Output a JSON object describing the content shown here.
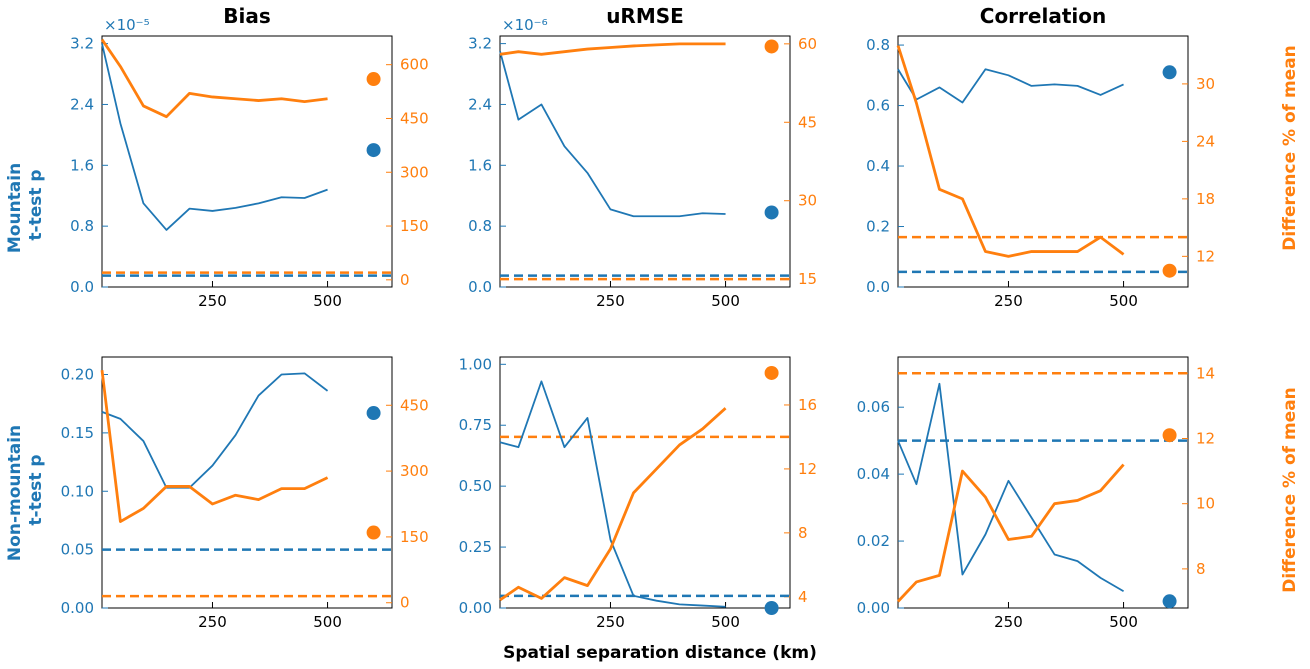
{
  "figure": {
    "xlabel": "Spatial separation distance (km)",
    "row_labels": [
      [
        "Mountain",
        "t-test p"
      ],
      [
        "Non-mountain",
        "t-test p"
      ]
    ],
    "right_axis_label": "Difference % of mean",
    "colors": {
      "left": "#1f77b4",
      "right": "#ff7f0e"
    }
  },
  "chart_data": [
    {
      "type": "line",
      "title": "Bias",
      "row": 0,
      "col": 0,
      "x": [
        10,
        50,
        100,
        150,
        200,
        250,
        300,
        350,
        400,
        450,
        500
      ],
      "xlim": [
        10,
        640
      ],
      "xticks": [
        250,
        500
      ],
      "left": {
        "values": [
          3.2,
          2.15,
          1.1,
          0.75,
          1.03,
          1.0,
          1.04,
          1.1,
          1.18,
          1.17,
          1.28
        ],
        "ylim": [
          0,
          3.3
        ],
        "yticks": [
          0.0,
          0.8,
          1.6,
          2.4,
          3.2
        ],
        "tick_labels": [
          "0.0",
          "0.8",
          "1.6",
          "2.4",
          "3.2"
        ],
        "offset_text": "×10⁻⁵",
        "threshold": 0.15,
        "marker": {
          "x": 600,
          "y": 1.8
        }
      },
      "right": {
        "values": [
          670,
          595,
          485,
          455,
          520,
          510,
          505,
          500,
          505,
          497,
          505
        ],
        "ylim": [
          -20,
          680
        ],
        "yticks": [
          0,
          150,
          300,
          450,
          600
        ],
        "tick_labels": [
          "0",
          "150",
          "300",
          "450",
          "600"
        ],
        "threshold": 20,
        "marker": {
          "x": 600,
          "y": 560
        }
      }
    },
    {
      "type": "line",
      "title": "uRMSE",
      "row": 0,
      "col": 1,
      "x": [
        10,
        50,
        100,
        150,
        200,
        250,
        300,
        350,
        400,
        450,
        500
      ],
      "xlim": [
        10,
        640
      ],
      "xticks": [
        250,
        500
      ],
      "left": {
        "values": [
          3.1,
          2.2,
          2.4,
          1.85,
          1.5,
          1.02,
          0.93,
          0.93,
          0.93,
          0.97,
          0.96
        ],
        "ylim": [
          0,
          3.3
        ],
        "yticks": [
          0.0,
          0.8,
          1.6,
          2.4,
          3.2
        ],
        "tick_labels": [
          "0.0",
          "0.8",
          "1.6",
          "2.4",
          "3.2"
        ],
        "offset_text": "×10⁻⁶",
        "threshold": 0.15,
        "marker": {
          "x": 600,
          "y": 0.98
        }
      },
      "right": {
        "values": [
          58,
          58.5,
          58,
          58.5,
          59,
          59.3,
          59.6,
          59.8,
          60,
          60,
          60
        ],
        "ylim": [
          13.5,
          61.5
        ],
        "yticks": [
          15,
          30,
          45,
          60
        ],
        "tick_labels": [
          "15",
          "30",
          "45",
          "60"
        ],
        "threshold": 15,
        "marker": {
          "x": 600,
          "y": 59.5
        }
      }
    },
    {
      "type": "line",
      "title": "Correlation",
      "row": 0,
      "col": 2,
      "x": [
        10,
        50,
        100,
        150,
        200,
        250,
        300,
        350,
        400,
        450,
        500
      ],
      "xlim": [
        10,
        640
      ],
      "xticks": [
        250,
        500
      ],
      "left": {
        "values": [
          0.72,
          0.62,
          0.66,
          0.61,
          0.72,
          0.7,
          0.665,
          0.67,
          0.665,
          0.635,
          0.67
        ],
        "ylim": [
          0,
          0.83
        ],
        "yticks": [
          0.0,
          0.2,
          0.4,
          0.6,
          0.8
        ],
        "tick_labels": [
          "0.0",
          "0.2",
          "0.4",
          "0.6",
          "0.8"
        ],
        "threshold": 0.05,
        "marker": {
          "x": 600,
          "y": 0.71
        }
      },
      "right": {
        "values": [
          34,
          28,
          19,
          18,
          12.5,
          12,
          12.5,
          12.5,
          12.5,
          14,
          12.2
        ],
        "ylim": [
          8.8,
          35
        ],
        "yticks": [
          12,
          18,
          24,
          30
        ],
        "tick_labels": [
          "12",
          "18",
          "24",
          "30"
        ],
        "threshold": 14,
        "marker": {
          "x": 600,
          "y": 10.5
        }
      }
    },
    {
      "type": "line",
      "title": "",
      "row": 1,
      "col": 0,
      "x": [
        10,
        50,
        100,
        150,
        200,
        250,
        300,
        350,
        400,
        450,
        500
      ],
      "xlim": [
        10,
        640
      ],
      "xticks": [
        250,
        500
      ],
      "left": {
        "values": [
          0.168,
          0.162,
          0.143,
          0.103,
          0.103,
          0.122,
          0.148,
          0.182,
          0.2,
          0.201,
          0.186
        ],
        "ylim": [
          0,
          0.215
        ],
        "yticks": [
          0.0,
          0.05,
          0.1,
          0.15,
          0.2
        ],
        "tick_labels": [
          "0.00",
          "0.05",
          "0.10",
          "0.15",
          "0.20"
        ],
        "threshold": 0.05,
        "marker": {
          "x": 600,
          "y": 0.167
        }
      },
      "right": {
        "values": [
          530,
          185,
          215,
          265,
          265,
          225,
          245,
          235,
          260,
          260,
          285
        ],
        "ylim": [
          -12,
          560
        ],
        "yticks": [
          0,
          150,
          300,
          450
        ],
        "tick_labels": [
          "0",
          "150",
          "300",
          "450"
        ],
        "threshold": 15,
        "marker": {
          "x": 600,
          "y": 160
        }
      }
    },
    {
      "type": "line",
      "title": "",
      "row": 1,
      "col": 1,
      "x": [
        10,
        50,
        100,
        150,
        200,
        250,
        300,
        350,
        400,
        450,
        500
      ],
      "xlim": [
        10,
        640
      ],
      "xticks": [
        250,
        500
      ],
      "left": {
        "values": [
          0.68,
          0.66,
          0.93,
          0.66,
          0.78,
          0.28,
          0.05,
          0.03,
          0.015,
          0.01,
          0.005
        ],
        "ylim": [
          0,
          1.03
        ],
        "yticks": [
          0.0,
          0.25,
          0.5,
          0.75,
          1.0
        ],
        "tick_labels": [
          "0.00",
          "0.25",
          "0.50",
          "0.75",
          "1.00"
        ],
        "threshold": 0.05,
        "marker": {
          "x": 600,
          "y": 0.0
        }
      },
      "right": {
        "values": [
          3.8,
          4.6,
          3.9,
          5.2,
          4.7,
          7.0,
          10.5,
          12.0,
          13.5,
          14.5,
          15.8
        ],
        "ylim": [
          3.3,
          19.0
        ],
        "yticks": [
          4,
          8,
          12,
          16
        ],
        "tick_labels": [
          "4",
          "8",
          "12",
          "16"
        ],
        "threshold": 14,
        "marker": {
          "x": 600,
          "y": 18.0
        }
      }
    },
    {
      "type": "line",
      "title": "",
      "row": 1,
      "col": 2,
      "x": [
        10,
        50,
        100,
        150,
        200,
        250,
        300,
        350,
        400,
        450,
        500
      ],
      "xlim": [
        10,
        640
      ],
      "xticks": [
        250,
        500
      ],
      "left": {
        "values": [
          0.05,
          0.037,
          0.067,
          0.01,
          0.022,
          0.038,
          0.027,
          0.016,
          0.014,
          0.009,
          0.005
        ],
        "ylim": [
          0,
          0.075
        ],
        "yticks": [
          0.0,
          0.02,
          0.04,
          0.06
        ],
        "tick_labels": [
          "0.00",
          "0.02",
          "0.04",
          "0.06"
        ],
        "threshold": 0.05,
        "marker": {
          "x": 600,
          "y": 0.002
        }
      },
      "right": {
        "values": [
          7.0,
          7.6,
          7.8,
          11.0,
          10.2,
          8.9,
          9.0,
          10.0,
          10.1,
          10.4,
          11.2
        ],
        "ylim": [
          6.8,
          14.5
        ],
        "yticks": [
          8,
          10,
          12,
          14
        ],
        "tick_labels": [
          "8",
          "10",
          "12",
          "14"
        ],
        "threshold": 14,
        "marker": {
          "x": 600,
          "y": 12.1
        }
      }
    }
  ]
}
